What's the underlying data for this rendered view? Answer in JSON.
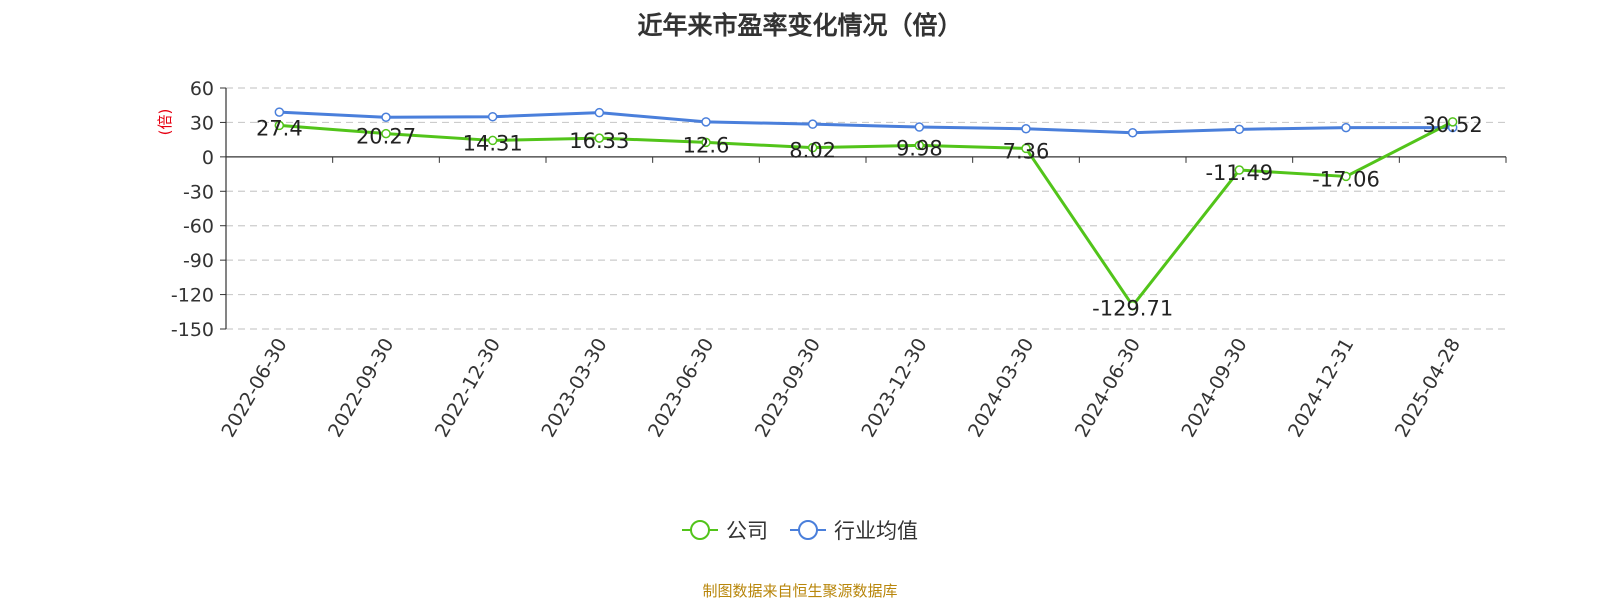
{
  "title": "近年来市盈率变化情况（倍）",
  "source": "制图数据来自恒生聚源数据库",
  "chart_data": {
    "type": "line",
    "title": "近年来市盈率变化情况（倍）",
    "ylabel": "(倍)",
    "xlabel": "",
    "categories": [
      "2022-06-30",
      "2022-09-30",
      "2022-12-30",
      "2023-03-30",
      "2023-06-30",
      "2023-09-30",
      "2023-12-30",
      "2024-03-30",
      "2024-06-30",
      "2024-09-30",
      "2024-12-31",
      "2025-04-28"
    ],
    "ylim": [
      -150,
      60
    ],
    "yticks": [
      60,
      30,
      0,
      -30,
      -60,
      -90,
      -120,
      -150
    ],
    "grid": true,
    "legend_position": "bottom-center",
    "series": [
      {
        "name": "公司",
        "color": "#52c41a",
        "values": [
          27.4,
          20.27,
          14.31,
          16.33,
          12.6,
          8.02,
          9.98,
          7.36,
          -129.71,
          -11.49,
          -17.06,
          30.52
        ],
        "data_labels": [
          "27.4",
          "20.27",
          "14.31",
          "16.33",
          "12.6",
          "8.02",
          "9.98",
          "7.36",
          "-129.71",
          "-11.49",
          "-17.06",
          "30.52"
        ]
      },
      {
        "name": "行业均值",
        "color": "#4a7fdb",
        "values": [
          39,
          34.5,
          35,
          38.5,
          30.5,
          28.5,
          26,
          24.5,
          21,
          24,
          25.5,
          25.5
        ],
        "data_labels": []
      }
    ]
  }
}
